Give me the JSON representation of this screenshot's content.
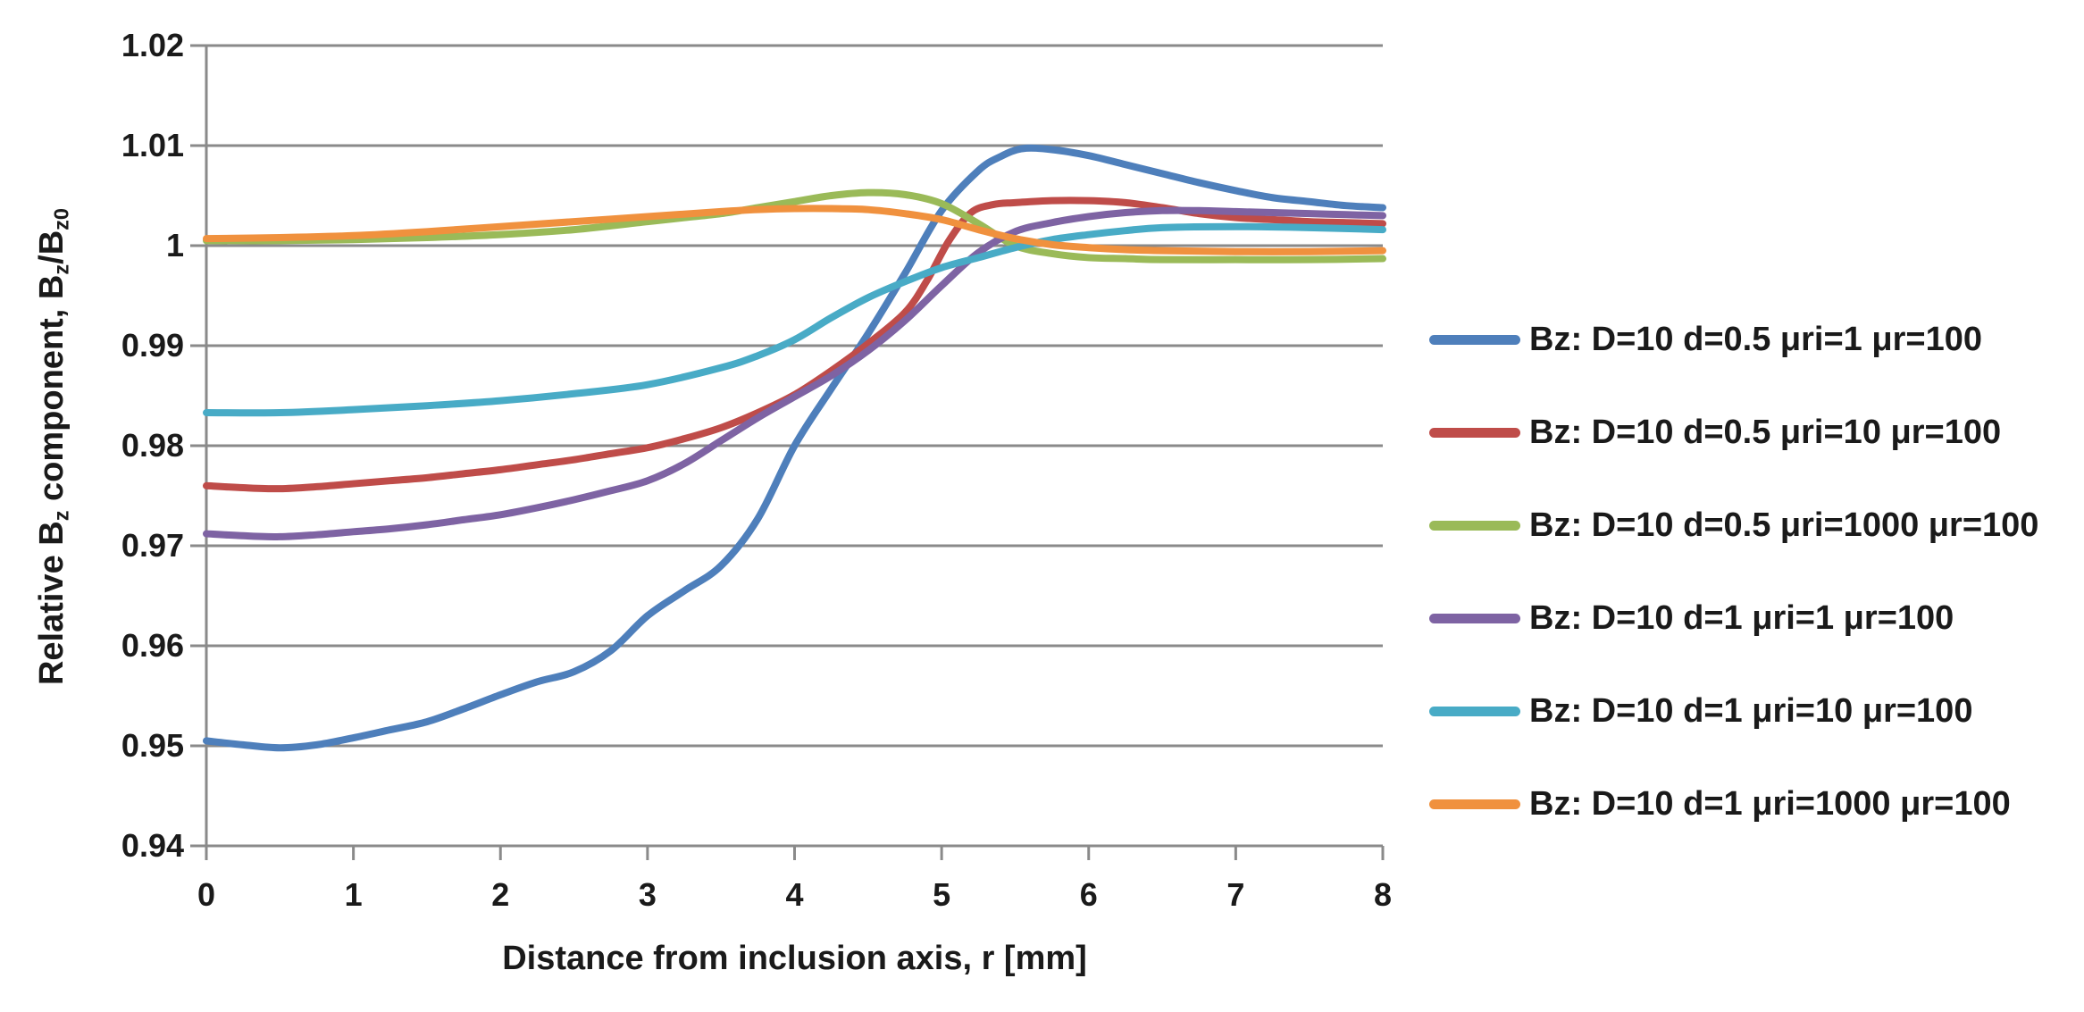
{
  "chart_data": {
    "type": "line",
    "title": "",
    "xlabel": "Distance from inclusion axis, r [mm]",
    "ylabel": "Relative Bz component, Bz/Bz0",
    "ylabel_parts": [
      {
        "t": "Relative B",
        "sub": false
      },
      {
        "t": "z",
        "sub": true
      },
      {
        "t": " component, B",
        "sub": false
      },
      {
        "t": "z",
        "sub": true
      },
      {
        "t": "/B",
        "sub": false
      },
      {
        "t": "z0",
        "sub": true
      }
    ],
    "xlim": [
      0,
      8
    ],
    "ylim": [
      0.94,
      1.02
    ],
    "x_ticks": [
      "0",
      "1",
      "2",
      "3",
      "4",
      "5",
      "6",
      "7",
      "8"
    ],
    "y_ticks": [
      "1.02",
      "1.01",
      "1",
      "0.99",
      "0.98",
      "0.97",
      "0.96",
      "0.95",
      "0.94"
    ],
    "grid": true,
    "legend_position": "right",
    "axis_color": "#8a8a8a",
    "text_color": "#1a1a1a",
    "background_color": "#ffffff",
    "line_width": 8,
    "series": [
      {
        "name": "Bz: D=10 d=0.5 μri=1 μr=100",
        "color": "#4e7fbb",
        "points": [
          [
            0,
            0.9505
          ],
          [
            0.25,
            0.9501
          ],
          [
            0.5,
            0.9498
          ],
          [
            0.75,
            0.9501
          ],
          [
            1,
            0.9508
          ],
          [
            1.25,
            0.9516
          ],
          [
            1.5,
            0.9524
          ],
          [
            1.75,
            0.9537
          ],
          [
            2,
            0.9551
          ],
          [
            2.25,
            0.9564
          ],
          [
            2.5,
            0.9574
          ],
          [
            2.75,
            0.9595
          ],
          [
            3,
            0.963
          ],
          [
            3.25,
            0.9655
          ],
          [
            3.5,
            0.968
          ],
          [
            3.75,
            0.9727
          ],
          [
            4,
            0.98
          ],
          [
            4.25,
            0.9857
          ],
          [
            4.5,
            0.9912
          ],
          [
            4.75,
            0.9972
          ],
          [
            5,
            1.0035
          ],
          [
            5.25,
            1.0075
          ],
          [
            5.4,
            1.0089
          ],
          [
            5.55,
            1.0097
          ],
          [
            5.75,
            1.0096
          ],
          [
            6,
            1.009
          ],
          [
            6.25,
            1.0081
          ],
          [
            6.5,
            1.0072
          ],
          [
            6.75,
            1.0063
          ],
          [
            7,
            1.0055
          ],
          [
            7.25,
            1.0048
          ],
          [
            7.5,
            1.0044
          ],
          [
            7.75,
            1.004
          ],
          [
            8,
            1.0038
          ]
        ]
      },
      {
        "name": "Bz: D=10 d=0.5 μri=10 μr=100",
        "color": "#bf4c49",
        "points": [
          [
            0,
            0.976
          ],
          [
            0.25,
            0.9758
          ],
          [
            0.5,
            0.9757
          ],
          [
            0.75,
            0.9759
          ],
          [
            1,
            0.9762
          ],
          [
            1.25,
            0.9765
          ],
          [
            1.5,
            0.9768
          ],
          [
            1.75,
            0.9772
          ],
          [
            2,
            0.9776
          ],
          [
            2.25,
            0.9781
          ],
          [
            2.5,
            0.9786
          ],
          [
            2.75,
            0.9792
          ],
          [
            3,
            0.9798
          ],
          [
            3.25,
            0.9807
          ],
          [
            3.5,
            0.9818
          ],
          [
            3.75,
            0.9833
          ],
          [
            4,
            0.9851
          ],
          [
            4.25,
            0.9875
          ],
          [
            4.5,
            0.9902
          ],
          [
            4.75,
            0.9933
          ],
          [
            4.9,
            0.9965
          ],
          [
            5.05,
            1.0005
          ],
          [
            5.2,
            1.0033
          ],
          [
            5.35,
            1.0041
          ],
          [
            5.5,
            1.0043
          ],
          [
            5.75,
            1.0045
          ],
          [
            6,
            1.0045
          ],
          [
            6.25,
            1.0043
          ],
          [
            6.5,
            1.0038
          ],
          [
            6.75,
            1.0032
          ],
          [
            7,
            1.0028
          ],
          [
            7.25,
            1.0026
          ],
          [
            7.5,
            1.0024
          ],
          [
            7.75,
            1.0023
          ],
          [
            8,
            1.0022
          ]
        ]
      },
      {
        "name": "Bz: D=10 d=0.5 μri=1000 μr=100",
        "color": "#9aba58",
        "points": [
          [
            0,
            1.0005
          ],
          [
            0.5,
            1.0005
          ],
          [
            1,
            1.0006
          ],
          [
            1.5,
            1.0008
          ],
          [
            2,
            1.0011
          ],
          [
            2.5,
            1.0016
          ],
          [
            3,
            1.0024
          ],
          [
            3.25,
            1.0028
          ],
          [
            3.5,
            1.0032
          ],
          [
            3.75,
            1.0038
          ],
          [
            4,
            1.0044
          ],
          [
            4.25,
            1.005
          ],
          [
            4.5,
            1.0053
          ],
          [
            4.75,
            1.0051
          ],
          [
            5,
            1.0042
          ],
          [
            5.25,
            1.0022
          ],
          [
            5.5,
            1.0
          ],
          [
            5.75,
            0.9992
          ],
          [
            6,
            0.9988
          ],
          [
            6.25,
            0.9987
          ],
          [
            6.5,
            0.9986
          ],
          [
            7,
            0.9986
          ],
          [
            7.5,
            0.9986
          ],
          [
            8,
            0.9987
          ]
        ]
      },
      {
        "name": "Bz: D=10 d=1 μri=1 μr=100",
        "color": "#7e63a3",
        "points": [
          [
            0,
            0.9712
          ],
          [
            0.25,
            0.971
          ],
          [
            0.5,
            0.9709
          ],
          [
            0.75,
            0.9711
          ],
          [
            1,
            0.9714
          ],
          [
            1.25,
            0.9717
          ],
          [
            1.5,
            0.9721
          ],
          [
            1.75,
            0.9726
          ],
          [
            2,
            0.9731
          ],
          [
            2.25,
            0.9738
          ],
          [
            2.5,
            0.9746
          ],
          [
            2.75,
            0.9755
          ],
          [
            3,
            0.9765
          ],
          [
            3.25,
            0.9782
          ],
          [
            3.5,
            0.9805
          ],
          [
            3.75,
            0.9828
          ],
          [
            4,
            0.9849
          ],
          [
            4.25,
            0.987
          ],
          [
            4.5,
            0.9895
          ],
          [
            4.75,
            0.9925
          ],
          [
            5,
            0.996
          ],
          [
            5.25,
            0.9993
          ],
          [
            5.5,
            1.0014
          ],
          [
            5.75,
            1.0023
          ],
          [
            6,
            1.0029
          ],
          [
            6.25,
            1.0033
          ],
          [
            6.5,
            1.0035
          ],
          [
            6.75,
            1.0035
          ],
          [
            7,
            1.0034
          ],
          [
            7.25,
            1.0033
          ],
          [
            7.5,
            1.0032
          ],
          [
            7.75,
            1.0031
          ],
          [
            8,
            1.003
          ]
        ]
      },
      {
        "name": "Bz: D=10 d=1 μri=10 μr=100",
        "color": "#48abc6",
        "points": [
          [
            0,
            0.9833
          ],
          [
            0.5,
            0.9833
          ],
          [
            1,
            0.9836
          ],
          [
            1.5,
            0.984
          ],
          [
            2,
            0.9845
          ],
          [
            2.5,
            0.9852
          ],
          [
            3,
            0.9861
          ],
          [
            3.5,
            0.9878
          ],
          [
            3.75,
            0.989
          ],
          [
            4,
            0.9906
          ],
          [
            4.25,
            0.9928
          ],
          [
            4.5,
            0.9948
          ],
          [
            4.75,
            0.9964
          ],
          [
            5,
            0.9978
          ],
          [
            5.25,
            0.9988
          ],
          [
            5.5,
            0.9998
          ],
          [
            5.75,
            1.0006
          ],
          [
            6,
            1.0011
          ],
          [
            6.25,
            1.0015
          ],
          [
            6.5,
            1.0018
          ],
          [
            7,
            1.0019
          ],
          [
            7.5,
            1.0018
          ],
          [
            8,
            1.0016
          ]
        ]
      },
      {
        "name": "Bz: D=10 d=1 μri=1000 μr=100",
        "color": "#f0913e",
        "points": [
          [
            0,
            1.0007
          ],
          [
            0.5,
            1.0008
          ],
          [
            1,
            1.001
          ],
          [
            1.5,
            1.0014
          ],
          [
            2,
            1.0019
          ],
          [
            2.5,
            1.0024
          ],
          [
            3,
            1.0029
          ],
          [
            3.5,
            1.0034
          ],
          [
            3.75,
            1.0036
          ],
          [
            4,
            1.0037
          ],
          [
            4.25,
            1.0037
          ],
          [
            4.5,
            1.0036
          ],
          [
            4.75,
            1.0032
          ],
          [
            5,
            1.0026
          ],
          [
            5.25,
            1.0016
          ],
          [
            5.5,
            1.0007
          ],
          [
            5.75,
            1.0001
          ],
          [
            6,
            0.9998
          ],
          [
            6.25,
            0.9996
          ],
          [
            6.5,
            0.9995
          ],
          [
            7,
            0.9994
          ],
          [
            7.5,
            0.9994
          ],
          [
            8,
            0.9995
          ]
        ]
      }
    ]
  }
}
